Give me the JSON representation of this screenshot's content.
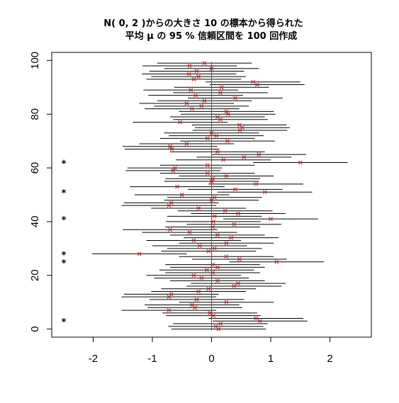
{
  "chart_data": {
    "type": "interval",
    "title_line1": "N( 0, 2 )からの大きさ 10 の標本から得られた",
    "title_line2": "平均 μ の 95 % 信頼区間を 100 回作成",
    "xlabel": "",
    "ylabel": "",
    "xlim": [
      -2.7,
      2.7
    ],
    "ylim": [
      -3,
      103
    ],
    "x_ticks": [
      "-2",
      "-1",
      "0",
      "1",
      "2"
    ],
    "y_ticks": [
      "0",
      "20",
      "40",
      "60",
      "80",
      "100"
    ],
    "true_mean": 0,
    "marker_color": "#cc2222",
    "miss_marker": "*",
    "half_width": 0.8,
    "means": [
      0.12,
      0.07,
      0.15,
      0.82,
      0.75,
      0.03,
      -0.03,
      -0.72,
      -0.28,
      -0.33,
      0.25,
      -0.25,
      -0.72,
      -0.68,
      -0.22,
      -0.05,
      0.38,
      0.45,
      0.1,
      -0.17,
      -0.3,
      0.02,
      -0.08,
      0.1,
      0.02,
      1.1,
      0.47,
      0.25,
      -1.22,
      -0.05,
      0.05,
      -0.2,
      0.25,
      -0.3,
      0.33,
      0.1,
      -0.37,
      -0.7,
      0.02,
      0.38,
      0.03,
      1.0,
      0.05,
      0.45,
      0.23,
      -0.22,
      -0.72,
      -0.68,
      0.0,
      0.05,
      -0.5,
      0.9,
      0.4,
      -0.58,
      0.75,
      0.0,
      0.02,
      0.25,
      -0.07,
      -0.65,
      -0.62,
      -0.07,
      1.5,
      0.2,
      0.55,
      0.8,
      0.1,
      -0.67,
      -0.7,
      -0.42,
      0.27,
      -0.07,
      0.08,
      0.0,
      0.48,
      0.52,
      0.47,
      -0.53,
      0.15,
      0.1,
      0.28,
      0.25,
      -0.33,
      -0.17,
      -0.42,
      -0.12,
      0.4,
      -0.27,
      0.15,
      -0.35,
      0.17,
      0.77,
      0.7,
      -0.3,
      -0.22,
      -0.38,
      -0.25,
      0.0,
      -0.37,
      -0.12
    ]
  }
}
